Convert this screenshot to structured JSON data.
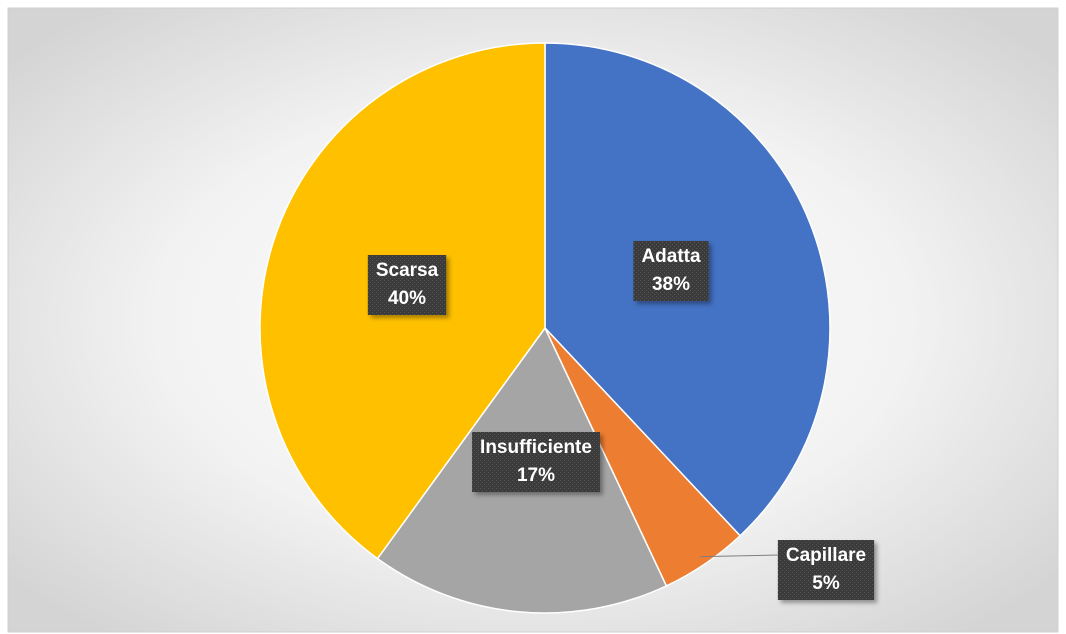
{
  "chart_data": {
    "type": "pie",
    "categories": [
      "Adatta",
      "Capillare",
      "Insufficiente",
      "Scarsa"
    ],
    "values": [
      38,
      5,
      17,
      40
    ],
    "value_labels": [
      "38%",
      "5%",
      "17%",
      "40%"
    ],
    "colors": [
      "#4472c4",
      "#ed7d31",
      "#a5a5a5",
      "#ffc000"
    ]
  }
}
